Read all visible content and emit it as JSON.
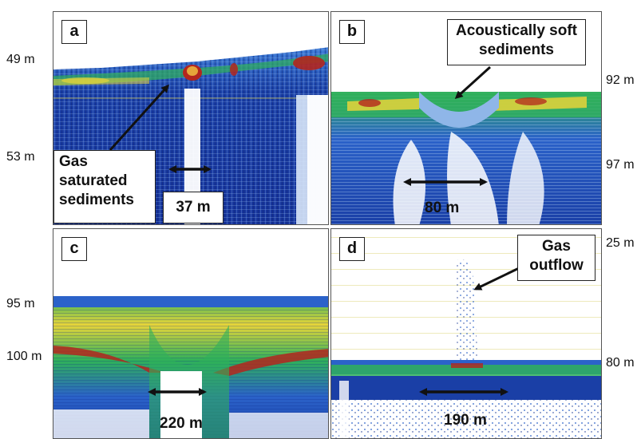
{
  "panels": {
    "a": {
      "letter": "a",
      "callout": "Gas\nsaturated\nsediments",
      "measure": "37 m",
      "depth_top": "49 m",
      "depth_bottom": "53 m"
    },
    "b": {
      "letter": "b",
      "callout": "Acoustically soft\nsediments",
      "measure": "80 m",
      "depth_top": "92 m",
      "depth_bottom": "97 m"
    },
    "c": {
      "letter": "c",
      "measure": "220 m",
      "depth_top": "95 m",
      "depth_bottom": "100 m"
    },
    "d": {
      "letter": "d",
      "callout": "Gas\noutflow",
      "measure": "190 m",
      "depth_top": "25 m",
      "depth_bottom": "80 m"
    }
  },
  "colors": {
    "deep_blue": "#0b2a8c",
    "mid_blue": "#2b62c9",
    "light_blue": "#8fb6e8",
    "green": "#2fb05a",
    "yellow": "#e6d43a",
    "red": "#b3261e",
    "white": "#ffffff"
  }
}
